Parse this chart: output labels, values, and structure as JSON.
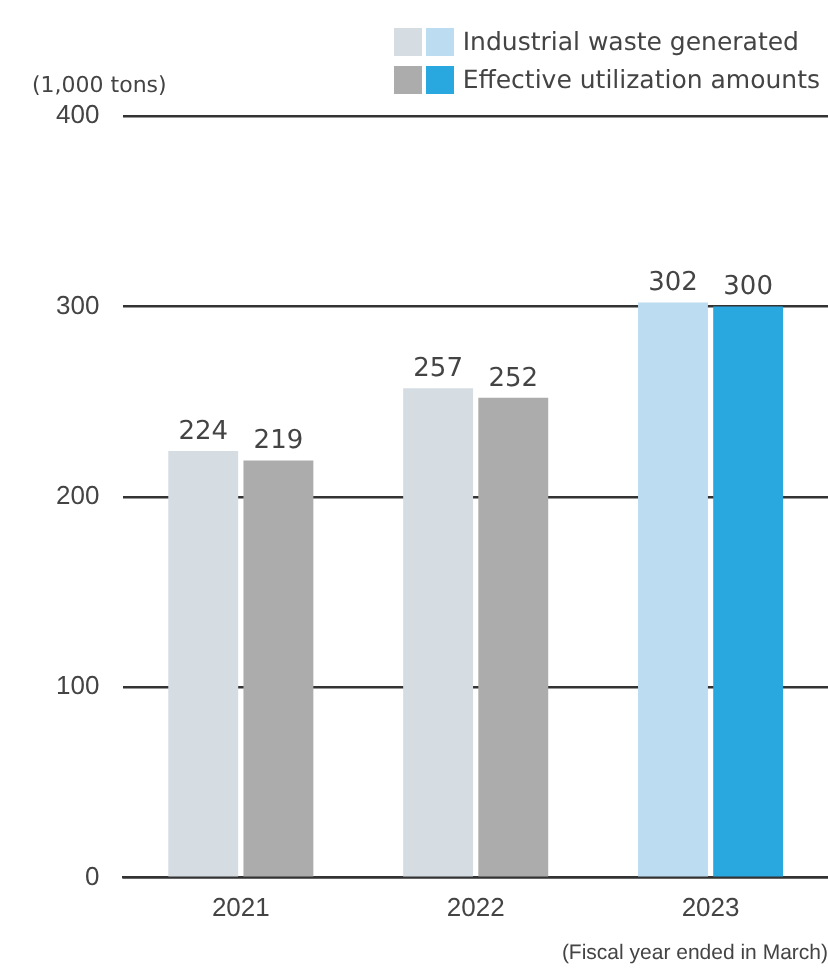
{
  "chart_data": {
    "type": "bar",
    "ylabel": "(1,000 tons)",
    "xlabel": "(Fiscal year ended in March)",
    "categories": [
      "2021",
      "2022",
      "2023"
    ],
    "series": [
      {
        "name": "Industrial waste generated",
        "colors": [
          "#d5dde3",
          "#d5dde3",
          "#bcdcf2"
        ],
        "values": [
          224,
          257,
          302
        ]
      },
      {
        "name": "Effective utilization amounts",
        "colors": [
          "#acacac",
          "#acacac",
          "#29a8e0"
        ],
        "values": [
          219,
          252,
          300
        ]
      }
    ],
    "ylim": [
      0,
      400
    ],
    "yticks": [
      0,
      100,
      200,
      300,
      400
    ],
    "grid": "y",
    "legend": "top right",
    "data_labels": true
  }
}
